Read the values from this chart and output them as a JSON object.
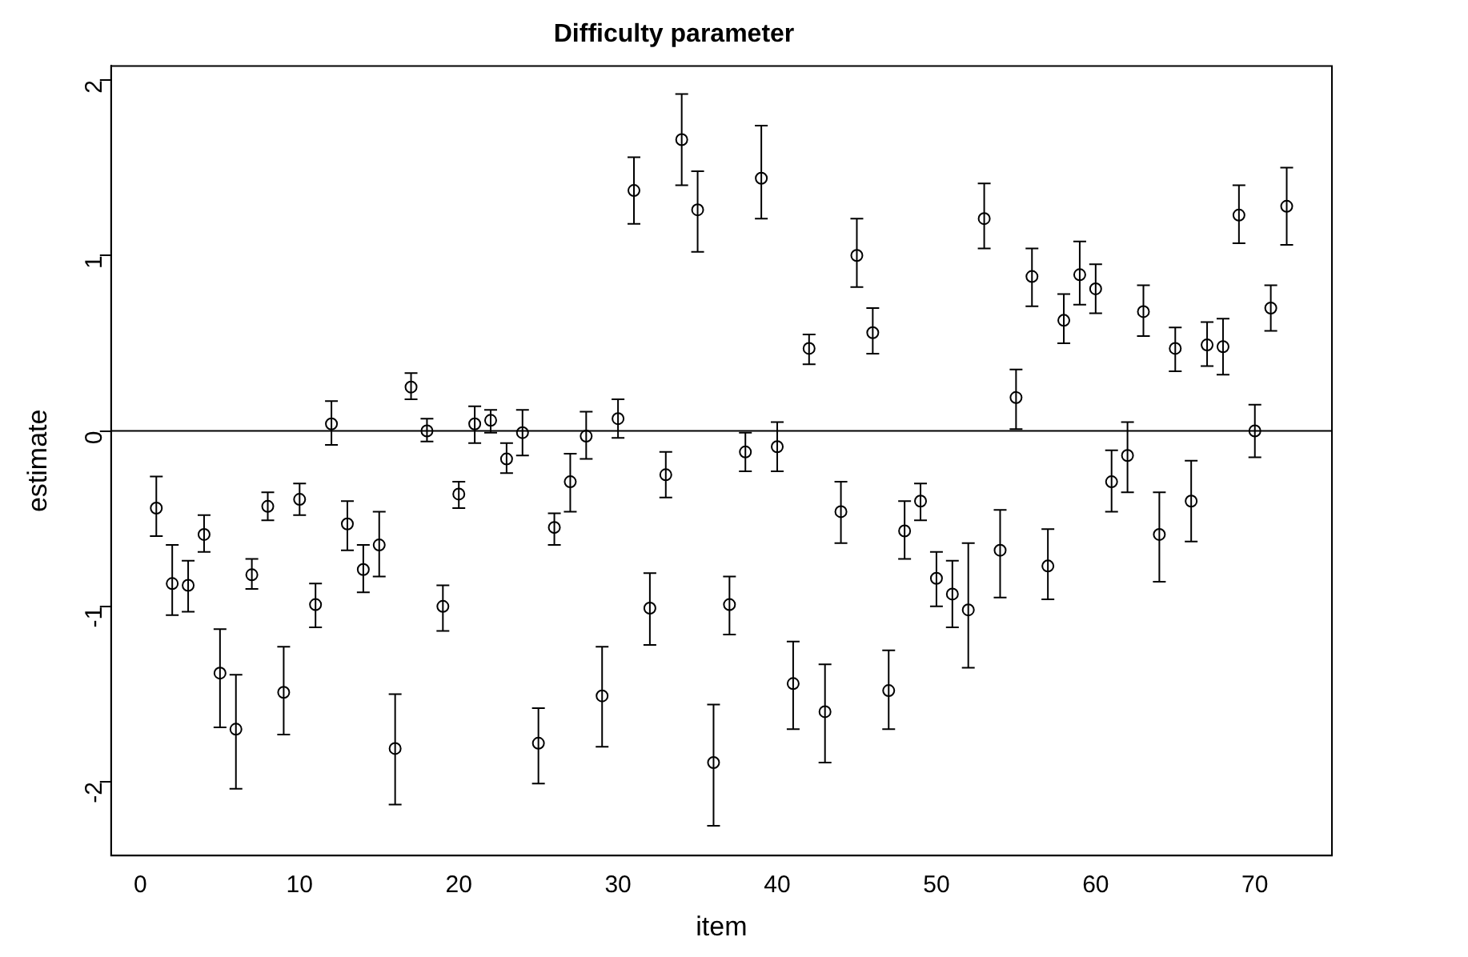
{
  "chart_data": {
    "type": "scatter",
    "title": "Difficulty parameter",
    "xlabel": "item",
    "ylabel": "estimate",
    "color": "#000000",
    "marker": "circle",
    "grid": false,
    "legend": false,
    "x": [
      1,
      2,
      3,
      4,
      5,
      6,
      7,
      8,
      9,
      10,
      11,
      12,
      13,
      14,
      15,
      16,
      17,
      18,
      19,
      20,
      21,
      22,
      23,
      24,
      25,
      26,
      27,
      28,
      29,
      30,
      31,
      32,
      33,
      34,
      35,
      36,
      37,
      38,
      39,
      40,
      41,
      42,
      43,
      44,
      45,
      46,
      47,
      48,
      49,
      50,
      51,
      52,
      53,
      54,
      55,
      56,
      57,
      58,
      59,
      60,
      61,
      62,
      63,
      64,
      65,
      66,
      67,
      68,
      69,
      70,
      71,
      72
    ],
    "values": [
      -0.44,
      -0.87,
      -0.88,
      -0.59,
      -1.38,
      -1.7,
      -0.82,
      -0.43,
      -1.49,
      -0.39,
      -0.99,
      0.04,
      -0.53,
      -0.79,
      -0.65,
      -1.81,
      0.25,
      0.0,
      -1.0,
      -0.36,
      0.04,
      0.06,
      -0.16,
      -0.01,
      -1.78,
      -0.55,
      -0.29,
      -0.03,
      -1.51,
      0.07,
      1.37,
      -1.01,
      -0.25,
      1.66,
      1.26,
      -1.89,
      -0.99,
      -0.12,
      1.44,
      -0.09,
      -1.44,
      0.47,
      -1.6,
      -0.46,
      1.0,
      0.56,
      -1.48,
      -0.57,
      -0.4,
      -0.84,
      -0.93,
      -1.02,
      1.21,
      -0.68,
      0.19,
      0.88,
      -0.77,
      0.63,
      0.89,
      0.81,
      -0.29,
      -0.14,
      0.68,
      -0.59,
      0.47,
      -0.4,
      0.49,
      0.48,
      1.23,
      0.0,
      0.7,
      1.28
    ],
    "errors": [
      [
        -0.6,
        -0.26
      ],
      [
        -1.05,
        -0.65
      ],
      [
        -1.03,
        -0.74
      ],
      [
        -0.69,
        -0.48
      ],
      [
        -1.69,
        -1.13
      ],
      [
        -2.04,
        -1.39
      ],
      [
        -0.9,
        -0.73
      ],
      [
        -0.51,
        -0.35
      ],
      [
        -1.73,
        -1.23
      ],
      [
        -0.48,
        -0.3
      ],
      [
        -1.12,
        -0.87
      ],
      [
        -0.08,
        0.17
      ],
      [
        -0.68,
        -0.4
      ],
      [
        -0.92,
        -0.65
      ],
      [
        -0.83,
        -0.46
      ],
      [
        -2.13,
        -1.5
      ],
      [
        0.18,
        0.33
      ],
      [
        -0.06,
        0.07
      ],
      [
        -1.14,
        -0.88
      ],
      [
        -0.44,
        -0.29
      ],
      [
        -0.07,
        0.14
      ],
      [
        -0.01,
        0.12
      ],
      [
        -0.24,
        -0.07
      ],
      [
        -0.14,
        0.12
      ],
      [
        -2.01,
        -1.58
      ],
      [
        -0.65,
        -0.47
      ],
      [
        -0.46,
        -0.13
      ],
      [
        -0.16,
        0.11
      ],
      [
        -1.8,
        -1.23
      ],
      [
        -0.04,
        0.18
      ],
      [
        1.18,
        1.56
      ],
      [
        -1.22,
        -0.81
      ],
      [
        -0.38,
        -0.12
      ],
      [
        1.4,
        1.92
      ],
      [
        1.02,
        1.48
      ],
      [
        -2.25,
        -1.56
      ],
      [
        -1.16,
        -0.83
      ],
      [
        -0.23,
        -0.01
      ],
      [
        1.21,
        1.74
      ],
      [
        -0.23,
        0.05
      ],
      [
        -1.7,
        -1.2
      ],
      [
        0.38,
        0.55
      ],
      [
        -1.89,
        -1.33
      ],
      [
        -0.64,
        -0.29
      ],
      [
        0.82,
        1.21
      ],
      [
        0.44,
        0.7
      ],
      [
        -1.7,
        -1.25
      ],
      [
        -0.73,
        -0.4
      ],
      [
        -0.51,
        -0.3
      ],
      [
        -1.0,
        -0.69
      ],
      [
        -1.12,
        -0.74
      ],
      [
        -1.35,
        -0.64
      ],
      [
        1.04,
        1.41
      ],
      [
        -0.95,
        -0.45
      ],
      [
        0.01,
        0.35
      ],
      [
        0.71,
        1.04
      ],
      [
        -0.96,
        -0.56
      ],
      [
        0.5,
        0.78
      ],
      [
        0.72,
        1.08
      ],
      [
        0.67,
        0.95
      ],
      [
        -0.46,
        -0.11
      ],
      [
        -0.35,
        0.05
      ],
      [
        0.54,
        0.83
      ],
      [
        -0.86,
        -0.35
      ],
      [
        0.34,
        0.59
      ],
      [
        -0.63,
        -0.17
      ],
      [
        0.37,
        0.62
      ],
      [
        0.32,
        0.64
      ],
      [
        1.07,
        1.4
      ],
      [
        -0.15,
        0.15
      ],
      [
        0.57,
        0.83
      ],
      [
        1.06,
        1.5
      ]
    ],
    "ref_lines": [
      {
        "axis": "y",
        "value": 0
      }
    ],
    "xlim": [
      -1.84,
      74.84
    ],
    "xticks": [
      0,
      10,
      20,
      30,
      40,
      50,
      60,
      70
    ],
    "ylim": [
      -2.42,
      2.08
    ],
    "yticks": [
      -2,
      -1,
      0,
      1,
      2
    ]
  }
}
